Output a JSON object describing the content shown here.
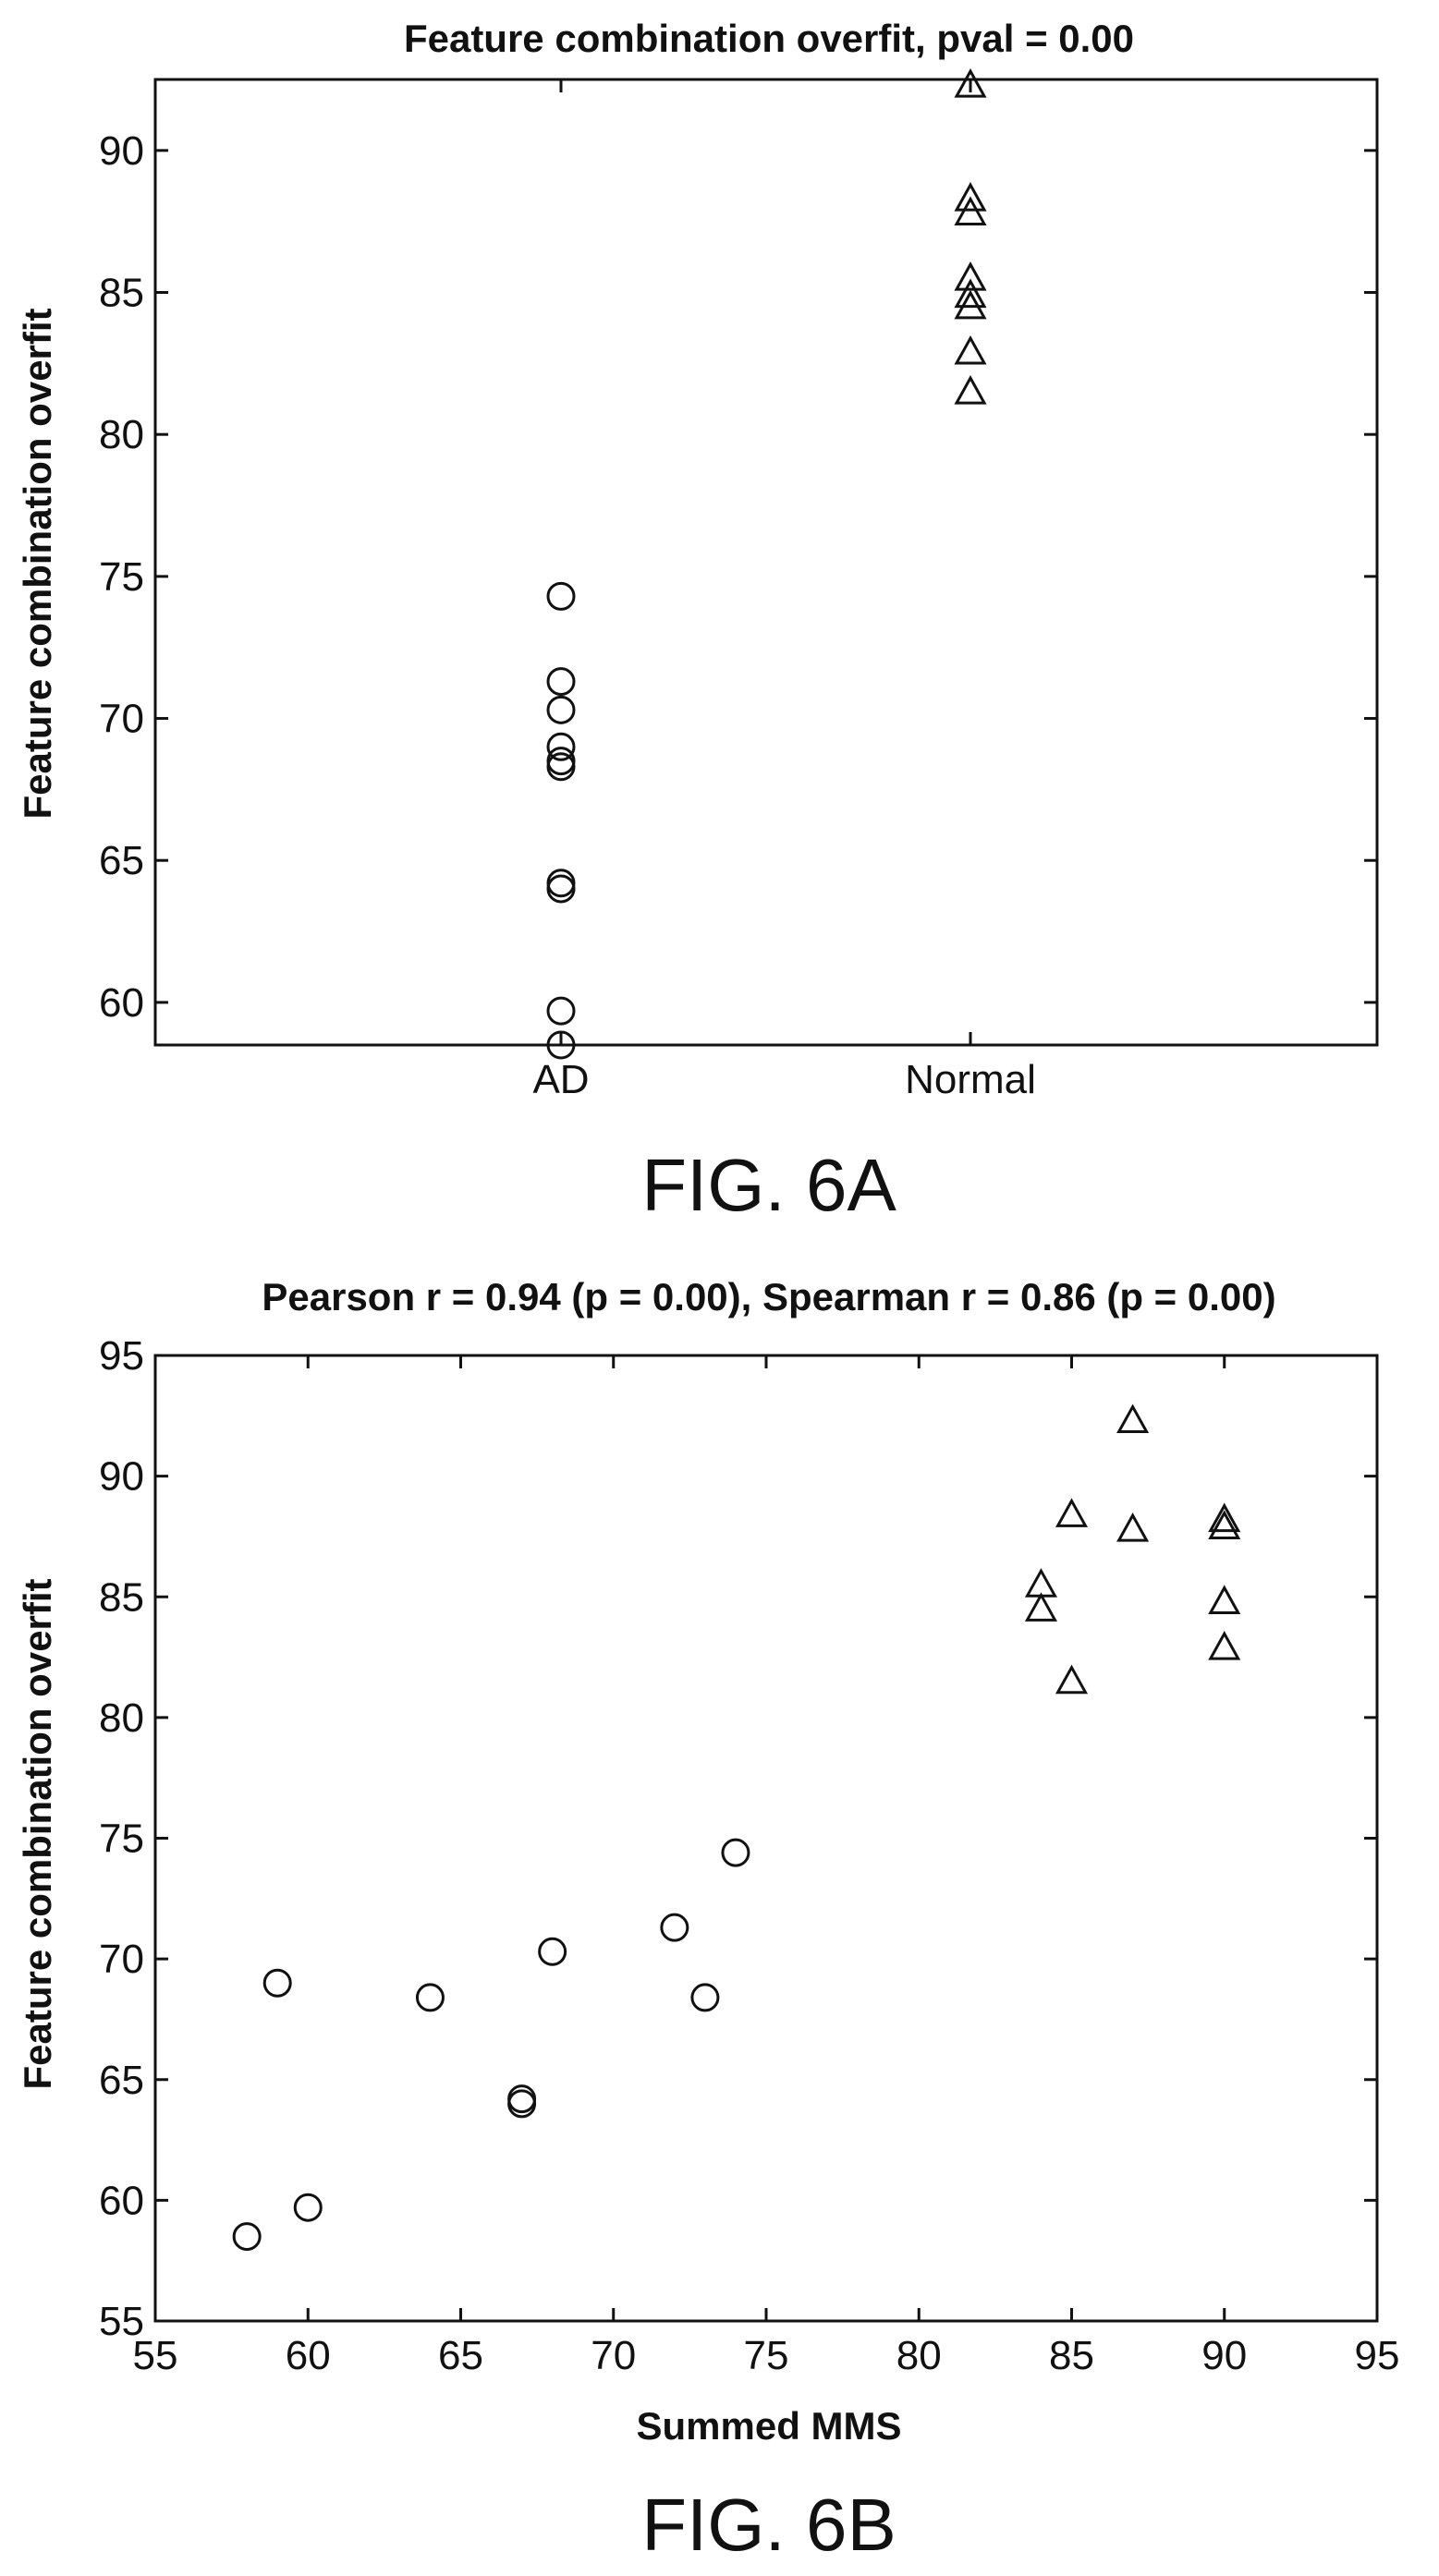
{
  "chart_data": [
    {
      "type": "scatter",
      "title": "Feature combination overfit, pval = 0.00",
      "xlabel": "",
      "ylabel": "Feature combination overfit",
      "categories": [
        "AD",
        "Normal"
      ],
      "ylim": [
        58.5,
        92.5
      ],
      "yticks": [
        "60",
        "65",
        "70",
        "75",
        "80",
        "85",
        "90"
      ],
      "grid": false,
      "series": [
        {
          "category": "AD",
          "marker": "circle",
          "values": [
            74.3,
            71.3,
            70.3,
            69.0,
            68.5,
            68.3,
            64.2,
            64.0,
            59.7,
            58.5
          ]
        },
        {
          "category": "Normal",
          "marker": "triangle",
          "values": [
            92.3,
            88.3,
            87.8,
            85.5,
            84.9,
            84.5,
            82.9,
            81.5
          ]
        }
      ],
      "figure_label": "FIG. 6A"
    },
    {
      "type": "scatter",
      "title": "Pearson r = 0.94 (p = 0.00), Spearman r = 0.86 (p = 0.00)",
      "xlabel": "Summed MMS",
      "ylabel": "Feature combination overfit",
      "xlim": [
        55,
        95
      ],
      "ylim": [
        55,
        95
      ],
      "xticks": [
        "55",
        "60",
        "65",
        "70",
        "75",
        "80",
        "85",
        "90",
        "95"
      ],
      "yticks": [
        "55",
        "60",
        "65",
        "70",
        "75",
        "80",
        "85",
        "90",
        "95"
      ],
      "grid": false,
      "series": [
        {
          "marker": "circle",
          "points": [
            [
              58,
              58.5
            ],
            [
              59,
              69.0
            ],
            [
              60,
              59.7
            ],
            [
              64,
              68.4
            ],
            [
              67,
              64.2
            ],
            [
              67,
              64.0
            ],
            [
              68,
              70.3
            ],
            [
              72,
              71.3
            ],
            [
              73,
              68.4
            ],
            [
              74,
              74.4
            ]
          ]
        },
        {
          "marker": "triangle",
          "points": [
            [
              84,
              85.5
            ],
            [
              84,
              84.5
            ],
            [
              85,
              88.4
            ],
            [
              85,
              81.5
            ],
            [
              87,
              92.3
            ],
            [
              87,
              87.8
            ],
            [
              90,
              88.2
            ],
            [
              90,
              87.9
            ],
            [
              90,
              84.8
            ],
            [
              90,
              82.9
            ]
          ]
        }
      ],
      "figure_label": "FIG. 6B"
    }
  ]
}
